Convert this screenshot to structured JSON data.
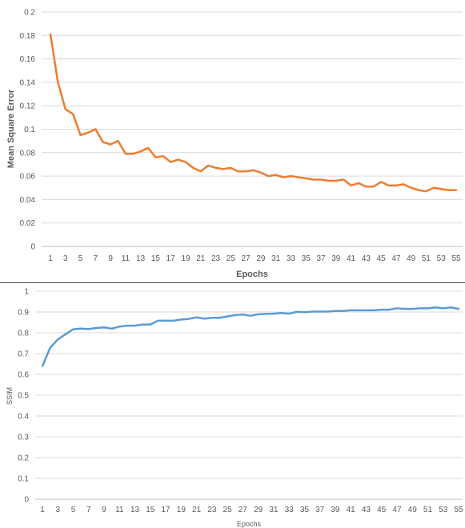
{
  "chart_data": [
    {
      "type": "line",
      "xlabel": "Epochs",
      "ylabel": "Mean Square Error",
      "ylim": [
        0,
        0.2
      ],
      "y_ticks": [
        "0",
        "0.02",
        "0.04",
        "0.06",
        "0.08",
        "0.1",
        "0.12",
        "0.14",
        "0.16",
        "0.18",
        "0.2"
      ],
      "x_tick_labels": [
        "1",
        "3",
        "5",
        "7",
        "9",
        "11",
        "13",
        "15",
        "17",
        "19",
        "21",
        "23",
        "25",
        "27",
        "29",
        "31",
        "33",
        "35",
        "37",
        "39",
        "41",
        "43",
        "45",
        "47",
        "49",
        "51",
        "53",
        "55"
      ],
      "grid": true,
      "color": "#ed7d31",
      "x": [
        1,
        2,
        3,
        4,
        5,
        6,
        7,
        8,
        9,
        10,
        11,
        12,
        13,
        14,
        15,
        16,
        17,
        18,
        19,
        20,
        21,
        22,
        23,
        24,
        25,
        26,
        27,
        28,
        29,
        30,
        31,
        32,
        33,
        34,
        35,
        36,
        37,
        38,
        39,
        40,
        41,
        42,
        43,
        44,
        45,
        46,
        47,
        48,
        49,
        50,
        51,
        52,
        53,
        54,
        55
      ],
      "values": [
        0.181,
        0.14,
        0.117,
        0.113,
        0.095,
        0.097,
        0.1,
        0.089,
        0.087,
        0.09,
        0.079,
        0.079,
        0.081,
        0.084,
        0.076,
        0.077,
        0.072,
        0.074,
        0.072,
        0.067,
        0.064,
        0.069,
        0.067,
        0.066,
        0.067,
        0.064,
        0.064,
        0.065,
        0.063,
        0.06,
        0.061,
        0.059,
        0.06,
        0.059,
        0.058,
        0.057,
        0.057,
        0.056,
        0.056,
        0.057,
        0.052,
        0.054,
        0.051,
        0.051,
        0.055,
        0.052,
        0.052,
        0.053,
        0.05,
        0.048,
        0.047,
        0.05,
        0.049,
        0.048,
        0.048
      ]
    },
    {
      "type": "line",
      "xlabel": "Epochs",
      "ylabel": "SSIM",
      "ylim": [
        0,
        1
      ],
      "y_ticks": [
        "0",
        "0.1",
        "0.2",
        "0.3",
        "0.4",
        "0.5",
        "0.6",
        "0.7",
        "0.8",
        "0.9",
        "1"
      ],
      "x_tick_labels": [
        "1",
        "3",
        "5",
        "7",
        "9",
        "11",
        "13",
        "15",
        "17",
        "19",
        "21",
        "23",
        "25",
        "27",
        "29",
        "31",
        "33",
        "35",
        "37",
        "39",
        "41",
        "43",
        "45",
        "47",
        "49",
        "51",
        "53",
        "55"
      ],
      "grid": true,
      "color": "#5b9bd5",
      "x": [
        1,
        2,
        3,
        4,
        5,
        6,
        7,
        8,
        9,
        10,
        11,
        12,
        13,
        14,
        15,
        16,
        17,
        18,
        19,
        20,
        21,
        22,
        23,
        24,
        25,
        26,
        27,
        28,
        29,
        30,
        31,
        32,
        33,
        34,
        35,
        36,
        37,
        38,
        39,
        40,
        41,
        42,
        43,
        44,
        45,
        46,
        47,
        48,
        49,
        50,
        51,
        52,
        53,
        54,
        55
      ],
      "values": [
        0.64,
        0.728,
        0.768,
        0.793,
        0.817,
        0.82,
        0.818,
        0.823,
        0.826,
        0.82,
        0.83,
        0.834,
        0.834,
        0.84,
        0.84,
        0.858,
        0.858,
        0.858,
        0.864,
        0.867,
        0.874,
        0.868,
        0.872,
        0.872,
        0.879,
        0.885,
        0.888,
        0.882,
        0.889,
        0.891,
        0.892,
        0.895,
        0.892,
        0.901,
        0.899,
        0.902,
        0.902,
        0.902,
        0.905,
        0.905,
        0.908,
        0.908,
        0.908,
        0.908,
        0.911,
        0.911,
        0.918,
        0.915,
        0.915,
        0.918,
        0.918,
        0.922,
        0.918,
        0.922,
        0.915
      ]
    }
  ]
}
